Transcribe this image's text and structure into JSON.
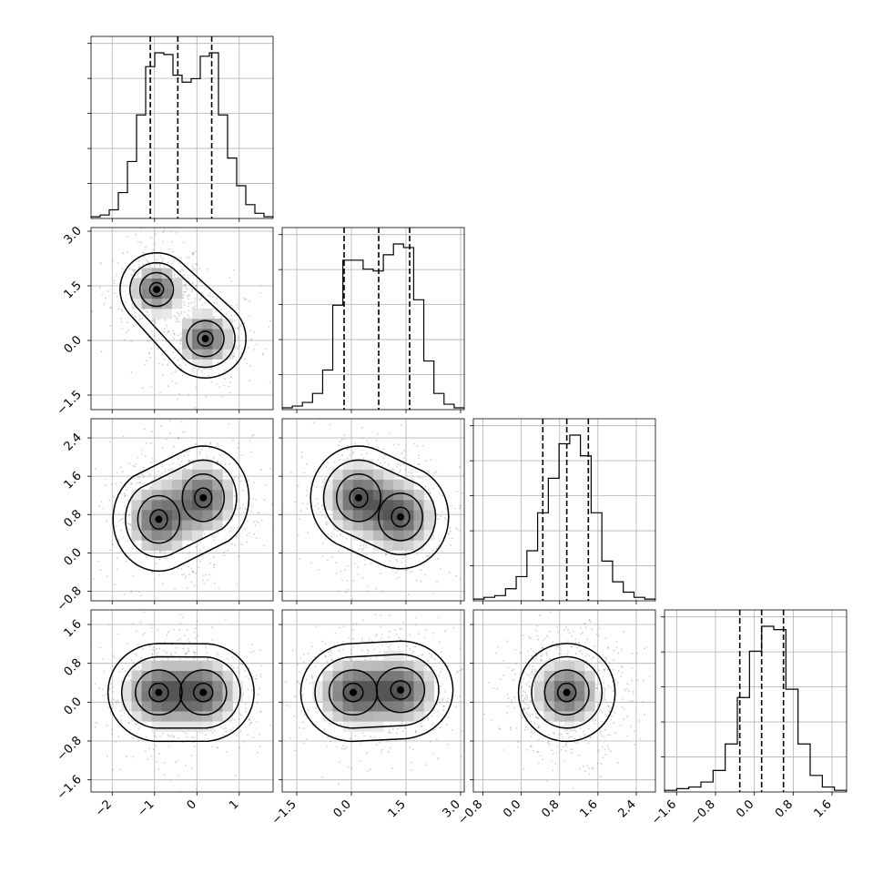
{
  "chart_data": {
    "type": "corner",
    "parameters": 4,
    "grid": true,
    "quantile_lines": "dashed",
    "hist_ranges": [
      [
        -2.5,
        1.8
      ],
      [
        -1.9,
        3.1
      ],
      [
        -1.0,
        2.8
      ],
      [
        -1.85,
        1.9
      ]
    ],
    "ticks": [
      {
        "values": [
          -2,
          -1,
          0,
          1
        ],
        "labels": [
          "−2",
          "−1",
          "0",
          "1"
        ]
      },
      {
        "values": [
          -1.5,
          0.0,
          1.5,
          3.0
        ],
        "labels": [
          "−1.5",
          "0.0",
          "1.5",
          "3.0"
        ]
      },
      {
        "values": [
          -0.8,
          0.0,
          0.8,
          1.6,
          2.4
        ],
        "labels": [
          "−0.8",
          "0.0",
          "0.8",
          "1.6",
          "2.4"
        ]
      },
      {
        "values": [
          -1.6,
          -0.8,
          0.0,
          0.8,
          1.6
        ],
        "labels": [
          "−1.6",
          "−0.8",
          "0.0",
          "0.8",
          "1.6"
        ]
      }
    ],
    "quantiles": [
      [
        -1.1,
        -0.45,
        0.35
      ],
      [
        -0.2,
        0.75,
        1.6
      ],
      [
        0.45,
        0.95,
        1.4
      ],
      [
        -0.3,
        0.15,
        0.6
      ]
    ],
    "histograms": [
      [
        1,
        2,
        5,
        15,
        33,
        60,
        88,
        96,
        95,
        83,
        79,
        81,
        94,
        96,
        60,
        35,
        19,
        8,
        3,
        1
      ],
      [
        1,
        2,
        4,
        9,
        22,
        58,
        83,
        83,
        78,
        77,
        86,
        92,
        90,
        61,
        27,
        9,
        3,
        1
      ],
      [
        1,
        2,
        3,
        7,
        14,
        29,
        51,
        71,
        91,
        96,
        84,
        51,
        23,
        11,
        5,
        2,
        1
      ],
      [
        1,
        2,
        3,
        6,
        13,
        29,
        57,
        85,
        100,
        98,
        62,
        29,
        10,
        3,
        1
      ]
    ],
    "blobs": {
      "1,0": [
        {
          "x": -0.95,
          "y": 1.4,
          "sx": 0.36,
          "sy": 0.42,
          "rot": 0
        },
        {
          "x": 0.2,
          "y": 0.05,
          "sx": 0.4,
          "sy": 0.45,
          "rot": 0
        }
      ],
      "2,0": [
        {
          "x": -0.9,
          "y": 0.7,
          "sx": 0.45,
          "sy": 0.45,
          "rot": 0
        },
        {
          "x": 0.15,
          "y": 1.15,
          "sx": 0.45,
          "sy": 0.45,
          "rot": 0
        }
      ],
      "3,0": [
        {
          "x": -0.9,
          "y": 0.2,
          "sx": 0.5,
          "sy": 0.42,
          "rot": 0
        },
        {
          "x": 0.15,
          "y": 0.2,
          "sx": 0.5,
          "sy": 0.42,
          "rot": 0
        }
      ],
      "2,1": [
        {
          "x": 0.2,
          "y": 1.15,
          "sx": 0.55,
          "sy": 0.45,
          "rot": 0
        },
        {
          "x": 1.35,
          "y": 0.75,
          "sx": 0.55,
          "sy": 0.45,
          "rot": 0
        }
      ],
      "3,1": [
        {
          "x": 0.05,
          "y": 0.2,
          "sx": 0.6,
          "sy": 0.42,
          "rot": 0
        },
        {
          "x": 1.35,
          "y": 0.25,
          "sx": 0.6,
          "sy": 0.42,
          "rot": 0
        }
      ],
      "3,2": [
        {
          "x": 0.95,
          "y": 0.2,
          "sx": 0.42,
          "sy": 0.42,
          "rot": 0
        }
      ]
    }
  }
}
